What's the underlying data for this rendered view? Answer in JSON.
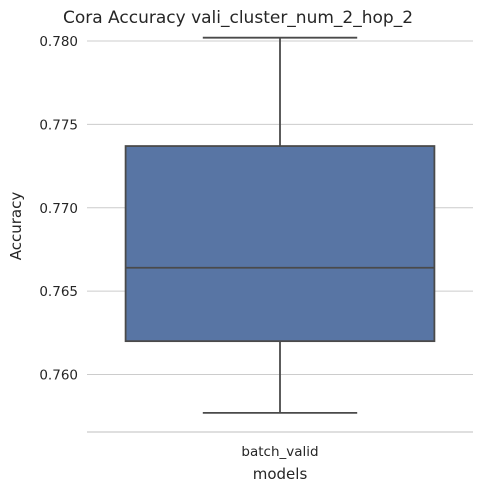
{
  "chart_data": {
    "type": "box",
    "title": "Cora Accuracy vali_cluster_num_2_hop_2",
    "xlabel": "models",
    "ylabel": "Accuracy",
    "ylim": [
      0.7565,
      0.7804
    ],
    "yticks": [
      0.76,
      0.765,
      0.77,
      0.775,
      0.78
    ],
    "ytick_labels": [
      "0.760",
      "0.765",
      "0.770",
      "0.775",
      "0.780"
    ],
    "grid": "horizontal",
    "categories": [
      "batch_valid"
    ],
    "boxes": [
      {
        "name": "batch_valid",
        "whisker_low": 0.7577,
        "q1": 0.762,
        "median": 0.7664,
        "q3": 0.7737,
        "whisker_high": 0.7802,
        "color": "#5875a4"
      }
    ],
    "edge_color": "#4a4a4a",
    "grid_color": "#cccccc",
    "text_color": "#262626"
  }
}
